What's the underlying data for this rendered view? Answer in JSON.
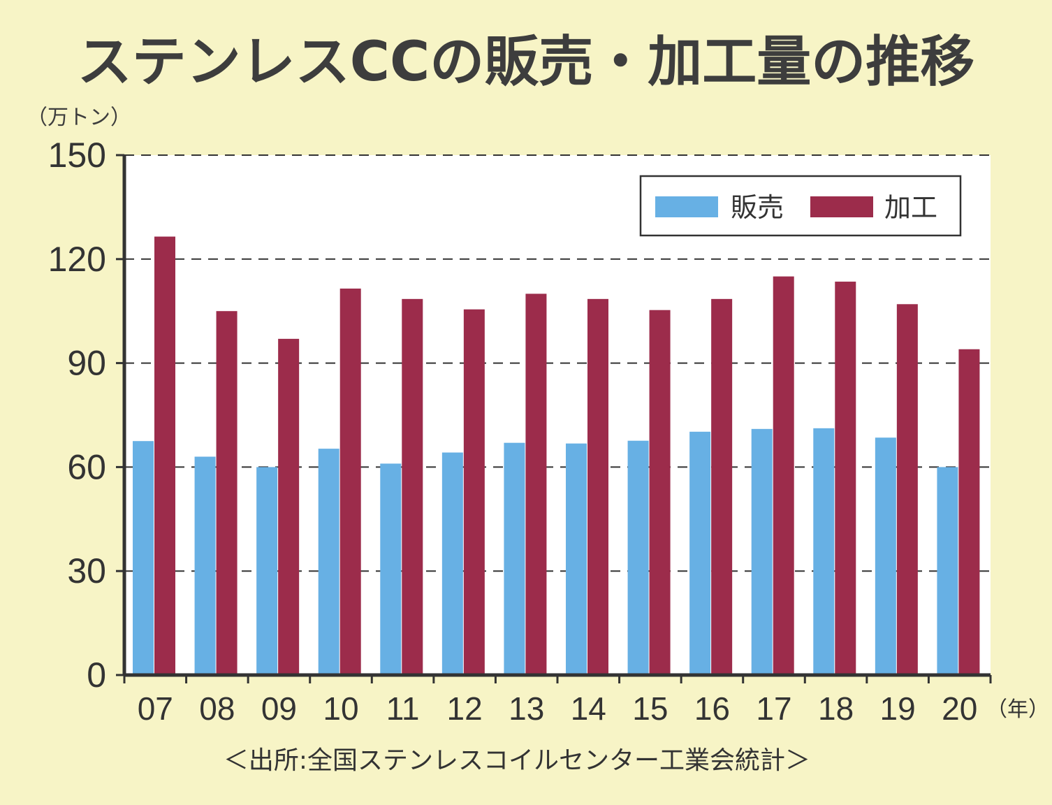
{
  "colors": {
    "background": "#f7f4c6",
    "plot_background": "#ffffff",
    "sales": "#67b0e4",
    "processing": "#9c2c4b",
    "axis": "#333333"
  },
  "chart_data": {
    "type": "bar",
    "title": "ステンレスCCの販売・加工量の推移",
    "ylabel": "（万トン）",
    "xlabel": "（年）",
    "source": "＜出所:全国ステンレスコイルセンター工業会統計＞",
    "categories": [
      "07",
      "08",
      "09",
      "10",
      "11",
      "12",
      "13",
      "14",
      "15",
      "16",
      "17",
      "18",
      "19",
      "20"
    ],
    "ylim": [
      0,
      150
    ],
    "yticks": [
      0,
      30,
      60,
      90,
      120,
      150
    ],
    "grid": "horizontal-dashed",
    "legend_position": "top-right",
    "series": [
      {
        "name": "販売",
        "values": [
          67.5,
          63.0,
          60.0,
          65.3,
          61.0,
          64.2,
          67.0,
          66.8,
          67.6,
          70.2,
          71.0,
          71.2,
          68.5,
          60.0
        ]
      },
      {
        "name": "加工",
        "values": [
          126.5,
          105.0,
          97.0,
          111.5,
          108.5,
          105.5,
          110.0,
          108.5,
          105.3,
          108.5,
          115.0,
          113.5,
          107.0,
          94.0
        ]
      }
    ]
  }
}
